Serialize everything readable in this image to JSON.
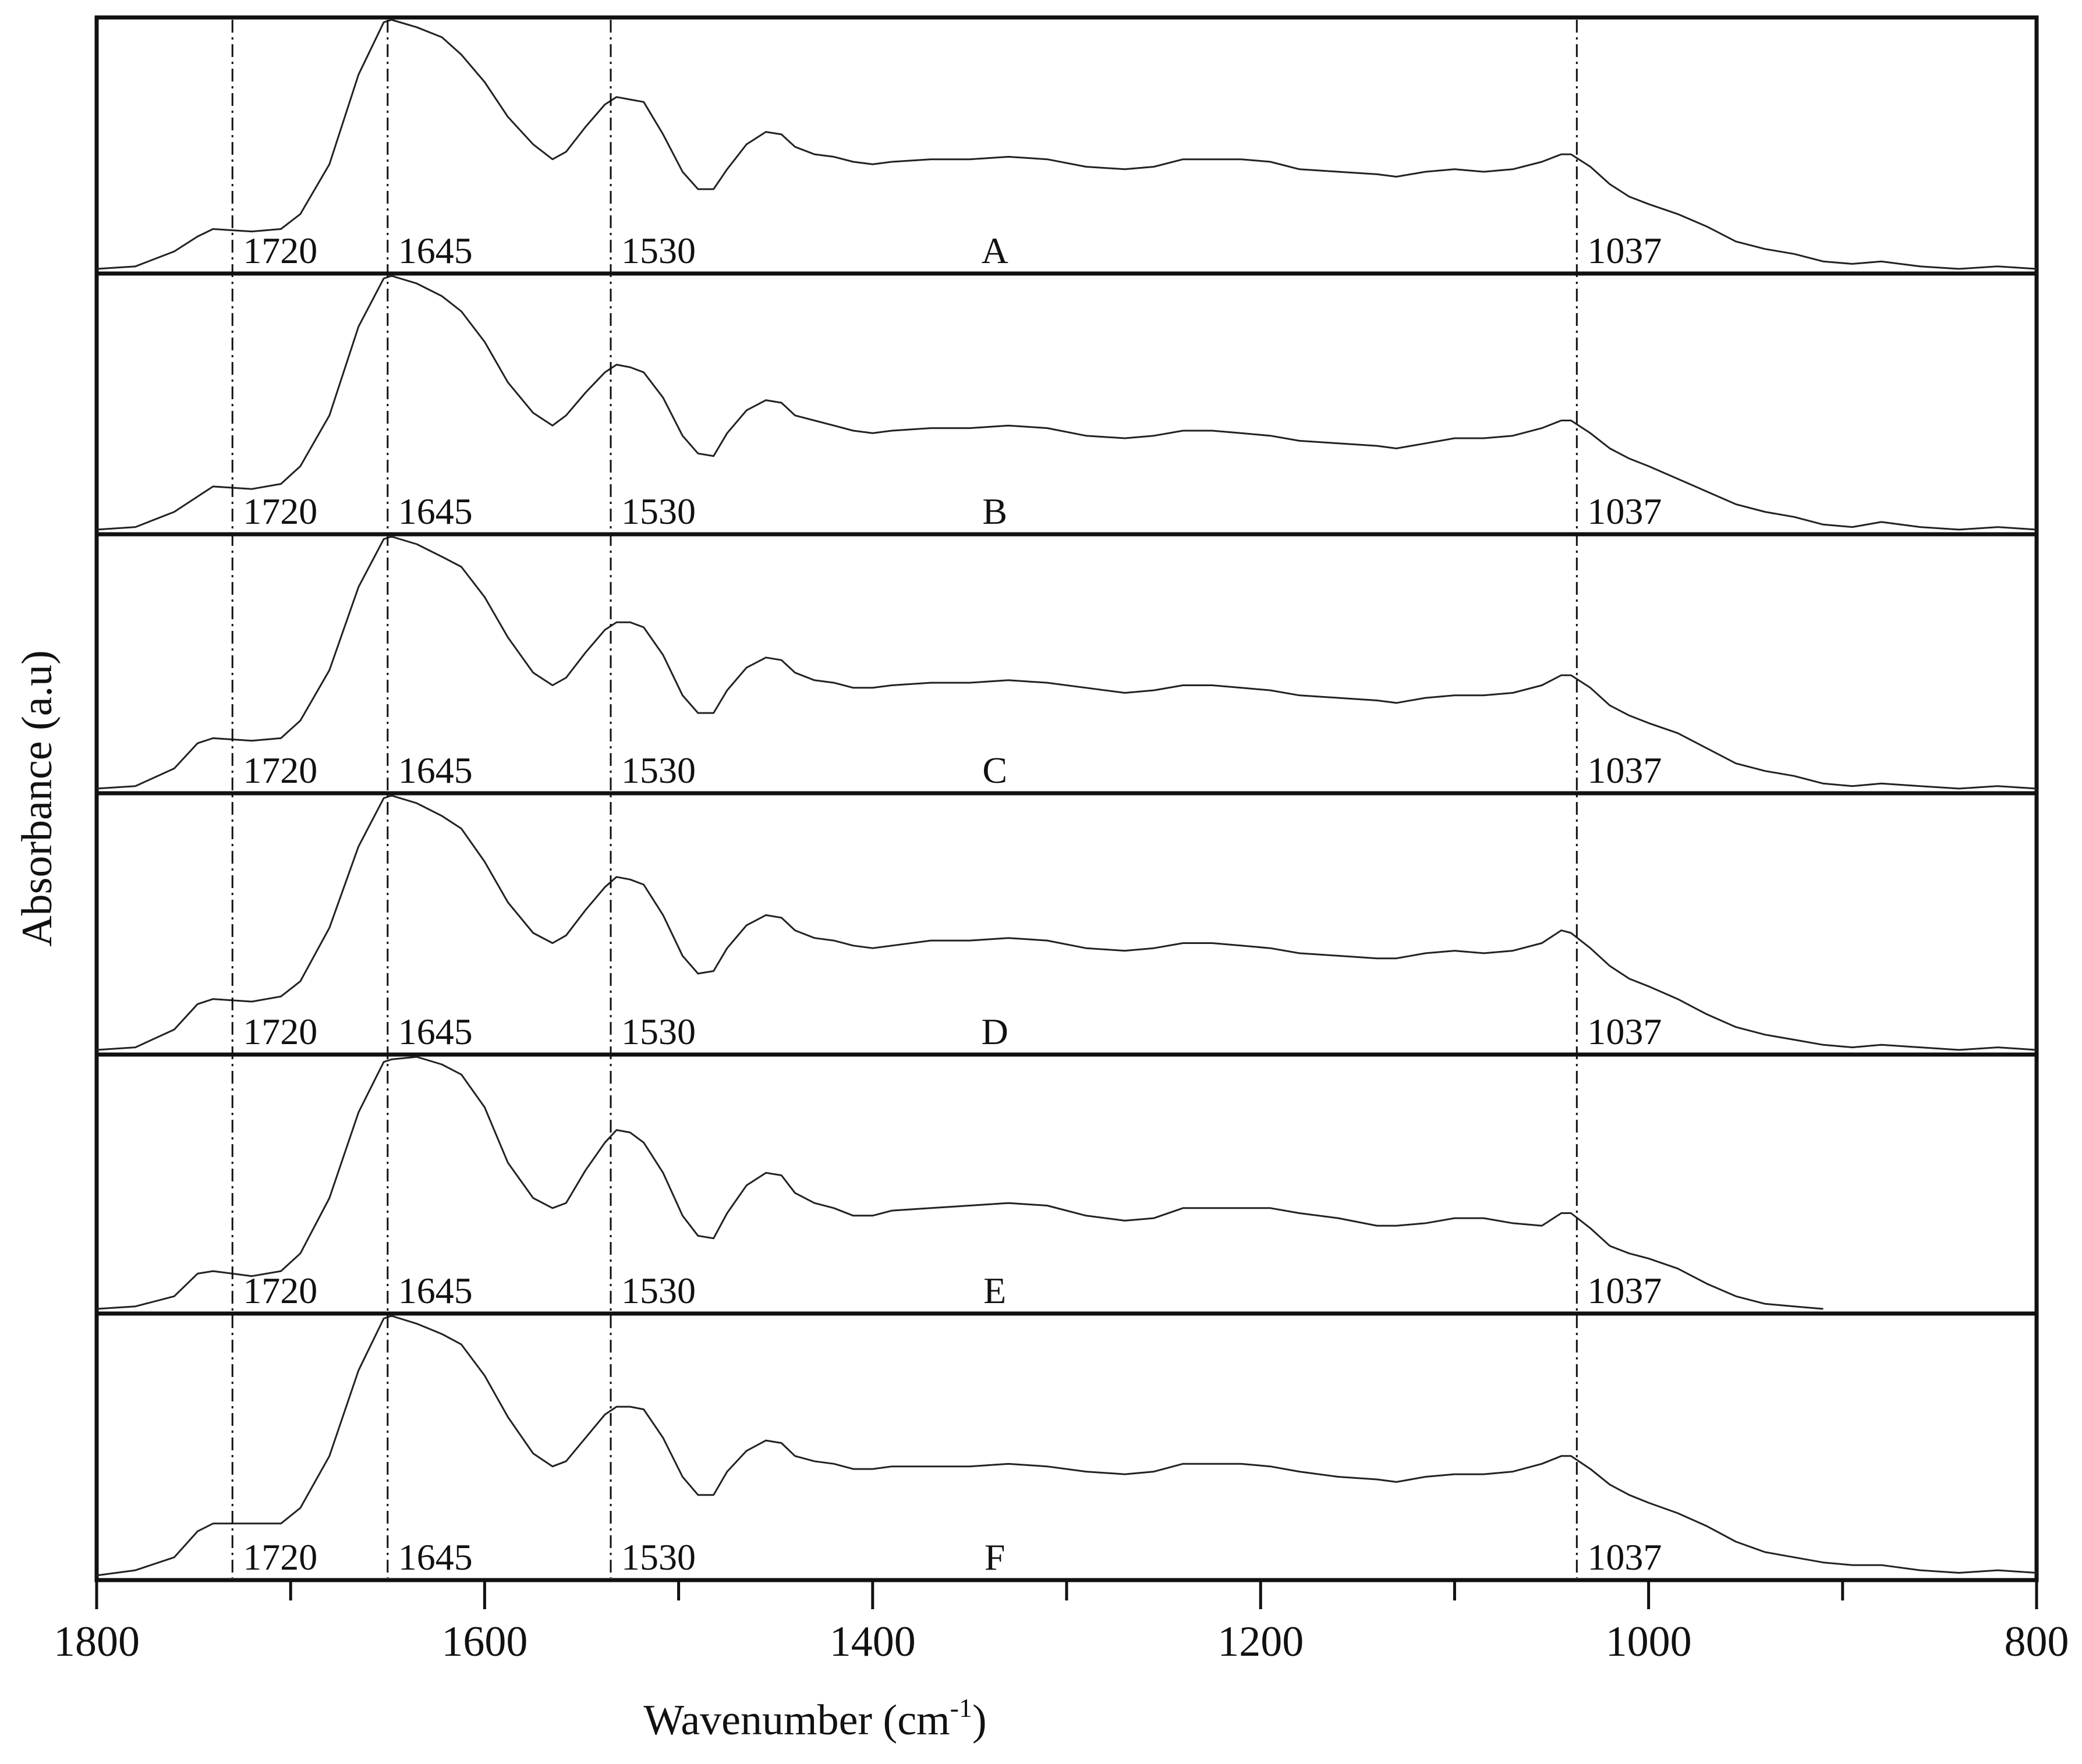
{
  "chart_data": {
    "type": "line",
    "xlabel": "Wavenumber (cm",
    "xlabel_sup": "-1",
    "xlabel_close": ")",
    "ylabel": "Absorbance (a.u)",
    "xlim": [
      1800,
      800
    ],
    "x_reversed": true,
    "x_ticks": [
      1800,
      1600,
      1400,
      1200,
      1000,
      800
    ],
    "x_tick_labels": [
      "1800",
      "1600",
      "1400",
      "1200",
      "1000",
      "800"
    ],
    "x_minor_ticks": [
      1700,
      1500,
      1300,
      1100,
      900
    ],
    "reference_lines": [
      1730,
      1650,
      1535,
      1037
    ],
    "peak_labels": [
      "1720",
      "1645",
      "1530",
      "1037"
    ],
    "grid": false,
    "legend": "none",
    "series": [
      {
        "name": "A",
        "x": [
          1800,
          1780,
          1760,
          1748,
          1740,
          1720,
          1705,
          1695,
          1680,
          1665,
          1652,
          1648,
          1635,
          1622,
          1612,
          1600,
          1588,
          1575,
          1565,
          1558,
          1548,
          1538,
          1532,
          1525,
          1518,
          1508,
          1498,
          1490,
          1482,
          1475,
          1465,
          1455,
          1447,
          1440,
          1430,
          1420,
          1410,
          1400,
          1390,
          1370,
          1350,
          1330,
          1310,
          1290,
          1270,
          1255,
          1240,
          1225,
          1210,
          1195,
          1180,
          1160,
          1140,
          1130,
          1115,
          1100,
          1085,
          1070,
          1055,
          1045,
          1040,
          1030,
          1020,
          1010,
          1000,
          985,
          970,
          955,
          940,
          925,
          910,
          895,
          880,
          860,
          840,
          820,
          800
        ],
        "y": [
          0.0,
          0.01,
          0.07,
          0.13,
          0.16,
          0.15,
          0.16,
          0.22,
          0.42,
          0.78,
          0.99,
          1.0,
          0.97,
          0.93,
          0.86,
          0.75,
          0.61,
          0.5,
          0.44,
          0.47,
          0.57,
          0.66,
          0.69,
          0.68,
          0.67,
          0.54,
          0.39,
          0.32,
          0.32,
          0.4,
          0.5,
          0.55,
          0.54,
          0.49,
          0.46,
          0.45,
          0.43,
          0.42,
          0.43,
          0.44,
          0.44,
          0.45,
          0.44,
          0.41,
          0.4,
          0.41,
          0.44,
          0.44,
          0.44,
          0.43,
          0.4,
          0.39,
          0.38,
          0.37,
          0.39,
          0.4,
          0.39,
          0.4,
          0.43,
          0.46,
          0.46,
          0.41,
          0.34,
          0.29,
          0.26,
          0.22,
          0.17,
          0.11,
          0.08,
          0.06,
          0.03,
          0.02,
          0.03,
          0.01,
          0.0,
          0.01,
          0.0
        ]
      },
      {
        "name": "B",
        "x": [
          1800,
          1780,
          1760,
          1748,
          1740,
          1720,
          1705,
          1695,
          1680,
          1665,
          1652,
          1648,
          1635,
          1622,
          1612,
          1600,
          1588,
          1575,
          1565,
          1558,
          1548,
          1538,
          1532,
          1525,
          1518,
          1508,
          1498,
          1490,
          1482,
          1475,
          1465,
          1455,
          1447,
          1440,
          1430,
          1420,
          1410,
          1400,
          1390,
          1370,
          1350,
          1330,
          1310,
          1290,
          1270,
          1255,
          1240,
          1225,
          1210,
          1195,
          1180,
          1160,
          1140,
          1130,
          1115,
          1100,
          1085,
          1070,
          1055,
          1045,
          1040,
          1030,
          1020,
          1010,
          1000,
          985,
          970,
          955,
          940,
          925,
          910,
          895,
          880,
          860,
          840,
          820,
          800
        ],
        "y": [
          0.0,
          0.01,
          0.07,
          0.13,
          0.17,
          0.16,
          0.18,
          0.25,
          0.45,
          0.8,
          0.99,
          1.0,
          0.97,
          0.92,
          0.86,
          0.74,
          0.58,
          0.46,
          0.41,
          0.45,
          0.54,
          0.62,
          0.65,
          0.64,
          0.62,
          0.52,
          0.37,
          0.3,
          0.29,
          0.38,
          0.47,
          0.51,
          0.5,
          0.45,
          0.43,
          0.41,
          0.39,
          0.38,
          0.39,
          0.4,
          0.4,
          0.41,
          0.4,
          0.37,
          0.36,
          0.37,
          0.39,
          0.39,
          0.38,
          0.37,
          0.35,
          0.34,
          0.33,
          0.32,
          0.34,
          0.36,
          0.36,
          0.37,
          0.4,
          0.43,
          0.43,
          0.38,
          0.32,
          0.28,
          0.25,
          0.2,
          0.15,
          0.1,
          0.07,
          0.05,
          0.02,
          0.01,
          0.03,
          0.01,
          0.0,
          0.01,
          0.0
        ]
      },
      {
        "name": "C",
        "x": [
          1800,
          1780,
          1760,
          1748,
          1740,
          1720,
          1705,
          1695,
          1680,
          1665,
          1652,
          1648,
          1635,
          1622,
          1612,
          1600,
          1588,
          1575,
          1565,
          1558,
          1548,
          1538,
          1532,
          1525,
          1518,
          1508,
          1498,
          1490,
          1482,
          1475,
          1465,
          1455,
          1447,
          1440,
          1430,
          1420,
          1410,
          1400,
          1390,
          1370,
          1350,
          1330,
          1310,
          1290,
          1270,
          1255,
          1240,
          1225,
          1210,
          1195,
          1180,
          1160,
          1140,
          1130,
          1115,
          1100,
          1085,
          1070,
          1055,
          1045,
          1040,
          1030,
          1020,
          1010,
          1000,
          985,
          970,
          955,
          940,
          925,
          910,
          895,
          880,
          860,
          840,
          820,
          800
        ],
        "y": [
          0.0,
          0.01,
          0.08,
          0.18,
          0.2,
          0.19,
          0.2,
          0.27,
          0.47,
          0.8,
          0.99,
          1.0,
          0.97,
          0.92,
          0.88,
          0.76,
          0.6,
          0.46,
          0.41,
          0.44,
          0.54,
          0.63,
          0.66,
          0.66,
          0.64,
          0.53,
          0.37,
          0.3,
          0.3,
          0.39,
          0.48,
          0.52,
          0.51,
          0.46,
          0.43,
          0.42,
          0.4,
          0.4,
          0.41,
          0.42,
          0.42,
          0.43,
          0.42,
          0.4,
          0.38,
          0.39,
          0.41,
          0.41,
          0.4,
          0.39,
          0.37,
          0.36,
          0.35,
          0.34,
          0.36,
          0.37,
          0.37,
          0.38,
          0.41,
          0.45,
          0.45,
          0.4,
          0.33,
          0.29,
          0.26,
          0.22,
          0.16,
          0.1,
          0.07,
          0.05,
          0.02,
          0.01,
          0.02,
          0.01,
          0.0,
          0.01,
          0.0
        ]
      },
      {
        "name": "D",
        "x": [
          1800,
          1780,
          1760,
          1748,
          1740,
          1720,
          1705,
          1695,
          1680,
          1665,
          1652,
          1648,
          1635,
          1622,
          1612,
          1600,
          1588,
          1575,
          1565,
          1558,
          1548,
          1538,
          1532,
          1525,
          1518,
          1508,
          1498,
          1490,
          1482,
          1475,
          1465,
          1455,
          1447,
          1440,
          1430,
          1420,
          1410,
          1400,
          1390,
          1370,
          1350,
          1330,
          1310,
          1290,
          1270,
          1255,
          1240,
          1225,
          1210,
          1195,
          1180,
          1160,
          1140,
          1130,
          1115,
          1100,
          1085,
          1070,
          1055,
          1045,
          1040,
          1030,
          1020,
          1010,
          1000,
          985,
          970,
          955,
          940,
          925,
          910,
          895,
          880,
          860,
          840,
          820,
          800
        ],
        "y": [
          0.0,
          0.01,
          0.08,
          0.18,
          0.2,
          0.19,
          0.21,
          0.27,
          0.48,
          0.8,
          0.99,
          1.0,
          0.97,
          0.92,
          0.87,
          0.74,
          0.58,
          0.46,
          0.42,
          0.45,
          0.55,
          0.64,
          0.68,
          0.67,
          0.65,
          0.53,
          0.37,
          0.3,
          0.31,
          0.4,
          0.49,
          0.53,
          0.52,
          0.47,
          0.44,
          0.43,
          0.41,
          0.4,
          0.41,
          0.43,
          0.43,
          0.44,
          0.43,
          0.4,
          0.39,
          0.4,
          0.42,
          0.42,
          0.41,
          0.4,
          0.38,
          0.37,
          0.36,
          0.36,
          0.38,
          0.39,
          0.38,
          0.39,
          0.42,
          0.47,
          0.46,
          0.4,
          0.33,
          0.28,
          0.25,
          0.2,
          0.14,
          0.09,
          0.06,
          0.04,
          0.02,
          0.01,
          0.02,
          0.01,
          0.0,
          0.01,
          0.0
        ]
      },
      {
        "name": "E",
        "x": [
          1800,
          1780,
          1760,
          1748,
          1740,
          1720,
          1705,
          1695,
          1680,
          1665,
          1652,
          1648,
          1635,
          1622,
          1612,
          1600,
          1588,
          1575,
          1565,
          1558,
          1548,
          1538,
          1532,
          1525,
          1518,
          1508,
          1498,
          1490,
          1482,
          1475,
          1465,
          1455,
          1447,
          1440,
          1430,
          1420,
          1410,
          1400,
          1390,
          1370,
          1350,
          1330,
          1310,
          1290,
          1270,
          1255,
          1240,
          1225,
          1210,
          1195,
          1180,
          1160,
          1140,
          1130,
          1115,
          1100,
          1085,
          1070,
          1055,
          1045,
          1040,
          1030,
          1020,
          1010,
          1000,
          985,
          970,
          955,
          940,
          925,
          910
        ],
        "y": [
          0.0,
          0.01,
          0.05,
          0.14,
          0.15,
          0.13,
          0.15,
          0.22,
          0.44,
          0.78,
          0.98,
          0.99,
          1.0,
          0.97,
          0.93,
          0.8,
          0.58,
          0.44,
          0.4,
          0.42,
          0.55,
          0.66,
          0.71,
          0.7,
          0.66,
          0.54,
          0.37,
          0.29,
          0.28,
          0.38,
          0.49,
          0.54,
          0.53,
          0.46,
          0.42,
          0.4,
          0.37,
          0.37,
          0.39,
          0.4,
          0.41,
          0.42,
          0.41,
          0.37,
          0.35,
          0.36,
          0.4,
          0.4,
          0.4,
          0.4,
          0.38,
          0.36,
          0.33,
          0.33,
          0.34,
          0.36,
          0.36,
          0.34,
          0.33,
          0.38,
          0.38,
          0.32,
          0.25,
          0.22,
          0.2,
          0.16,
          0.1,
          0.05,
          0.02,
          0.01,
          0.0
        ]
      },
      {
        "name": "F",
        "x": [
          1800,
          1780,
          1760,
          1748,
          1740,
          1720,
          1705,
          1695,
          1680,
          1665,
          1652,
          1648,
          1635,
          1622,
          1612,
          1600,
          1588,
          1575,
          1565,
          1558,
          1548,
          1538,
          1532,
          1525,
          1518,
          1508,
          1498,
          1490,
          1482,
          1475,
          1465,
          1455,
          1447,
          1440,
          1430,
          1420,
          1410,
          1400,
          1390,
          1370,
          1350,
          1330,
          1310,
          1290,
          1270,
          1255,
          1240,
          1225,
          1210,
          1195,
          1180,
          1160,
          1140,
          1130,
          1115,
          1100,
          1085,
          1070,
          1055,
          1045,
          1040,
          1030,
          1020,
          1010,
          1000,
          985,
          970,
          955,
          940,
          925,
          910,
          895,
          880,
          860,
          840,
          820,
          800
        ],
        "y": [
          0.0,
          0.02,
          0.07,
          0.17,
          0.2,
          0.2,
          0.2,
          0.26,
          0.46,
          0.79,
          0.99,
          1.0,
          0.97,
          0.93,
          0.89,
          0.77,
          0.61,
          0.47,
          0.42,
          0.44,
          0.53,
          0.62,
          0.65,
          0.65,
          0.64,
          0.53,
          0.38,
          0.31,
          0.31,
          0.4,
          0.48,
          0.52,
          0.51,
          0.46,
          0.44,
          0.43,
          0.41,
          0.41,
          0.42,
          0.42,
          0.42,
          0.43,
          0.42,
          0.4,
          0.39,
          0.4,
          0.43,
          0.43,
          0.43,
          0.42,
          0.4,
          0.38,
          0.37,
          0.36,
          0.38,
          0.39,
          0.39,
          0.4,
          0.43,
          0.46,
          0.46,
          0.41,
          0.35,
          0.31,
          0.28,
          0.24,
          0.19,
          0.13,
          0.09,
          0.07,
          0.05,
          0.04,
          0.04,
          0.02,
          0.01,
          0.02,
          0.01
        ]
      }
    ]
  }
}
